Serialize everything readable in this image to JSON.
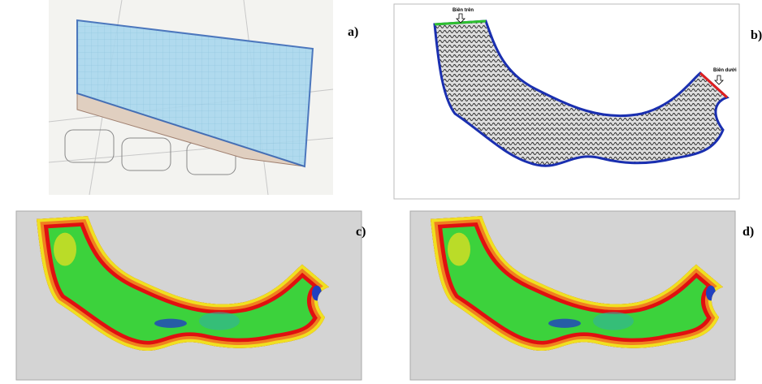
{
  "panels": [
    {
      "label": "a)"
    },
    {
      "label": "b)",
      "annotations": [
        "Biên trên",
        "Biên dưới"
      ]
    },
    {
      "label": "c)"
    },
    {
      "label": "d)"
    }
  ]
}
